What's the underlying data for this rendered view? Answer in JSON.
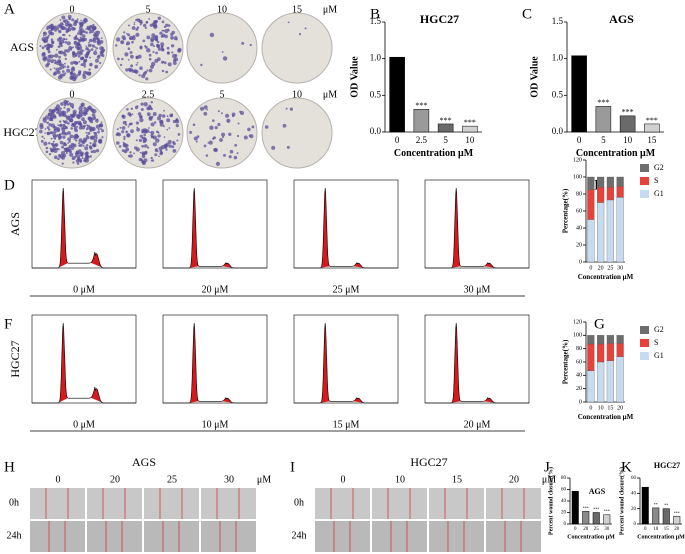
{
  "chart_data": [
    {
      "type": "bar",
      "letter": "B",
      "title": "HGC27",
      "ylabel": "OD Value",
      "xlabel": "Concentration μM",
      "categories": [
        "0",
        "2.5",
        "5",
        "10"
      ],
      "values": [
        1.02,
        0.31,
        0.11,
        0.08
      ],
      "colors": [
        "#000000",
        "#9a9a9a",
        "#6a6a6a",
        "#d0d0d0"
      ],
      "annotations": [
        null,
        "***",
        "***",
        "***"
      ],
      "ylim": [
        0,
        1.5
      ],
      "yticks": [
        {
          "value": 0,
          "label": "0.0"
        },
        {
          "value": 0.5,
          "label": "0.5"
        },
        {
          "value": 1,
          "label": "1.0"
        },
        {
          "value": 1.5,
          "label": "1.5"
        }
      ]
    },
    {
      "type": "bar",
      "letter": "C",
      "title": "AGS",
      "ylabel": "OD Value",
      "xlabel": "Concentration μM",
      "categories": [
        "0",
        "5",
        "10",
        "15"
      ],
      "values": [
        1.04,
        0.35,
        0.22,
        0.11
      ],
      "colors": [
        "#000000",
        "#9a9a9a",
        "#6a6a6a",
        "#d0d0d0"
      ],
      "annotations": [
        null,
        "***",
        "***",
        "***"
      ],
      "ylim": [
        0,
        1.5
      ],
      "yticks": [
        {
          "value": 0,
          "label": "0.0"
        },
        {
          "value": 0.5,
          "label": "0.5"
        },
        {
          "value": 1,
          "label": "1.0"
        },
        {
          "value": 1.5,
          "label": "1.5"
        }
      ]
    },
    {
      "type": "stacked_bar",
      "letter": "E",
      "ylabel": "Percentage(%)",
      "xlabel": "Concentration μM",
      "categories": [
        "0",
        "20",
        "25",
        "30"
      ],
      "series": [
        {
          "name": "G1",
          "color": "#c6dbef",
          "values": [
            50,
            70,
            73,
            76
          ]
        },
        {
          "name": "S",
          "color": "#e8413a",
          "values": [
            35,
            18,
            15,
            13
          ]
        },
        {
          "name": "G2",
          "color": "#6d6d6d",
          "values": [
            15,
            12,
            12,
            11
          ]
        }
      ],
      "ylim": [
        0,
        120
      ],
      "yticks": [
        0,
        20,
        40,
        60,
        80,
        100,
        120
      ]
    },
    {
      "type": "stacked_bar",
      "letter": "G",
      "ylabel": "Percentage(%)",
      "xlabel": "Concentration μM",
      "categories": [
        "0",
        "10",
        "15",
        "20"
      ],
      "series": [
        {
          "name": "G1",
          "color": "#c6dbef",
          "values": [
            47,
            60,
            62,
            68
          ]
        },
        {
          "name": "S",
          "color": "#e8413a",
          "values": [
            40,
            27,
            26,
            20
          ]
        },
        {
          "name": "G2",
          "color": "#6d6d6d",
          "values": [
            13,
            13,
            12,
            12
          ]
        }
      ],
      "ylim": [
        0,
        120
      ],
      "yticks": [
        0,
        20,
        40,
        60,
        80,
        100,
        120
      ]
    },
    {
      "type": "bar",
      "letter": "J",
      "title": "AGS",
      "ylabel": "Percent wound closure(%)",
      "xlabel": "Concentration μM",
      "categories": [
        "0",
        "20",
        "25",
        "30"
      ],
      "values": [
        57,
        22,
        20,
        16
      ],
      "colors": [
        "#000000",
        "#8a8a8a",
        "#6a6a6a",
        "#d0d0d0"
      ],
      "annotations": [
        null,
        "***",
        "***",
        "***"
      ],
      "ylim": [
        0,
        80
      ],
      "yticks": [
        0,
        20,
        40,
        60,
        80
      ]
    },
    {
      "type": "bar",
      "letter": "K",
      "title": "HGC27",
      "ylabel": "Percent wound closure(%)",
      "xlabel": "Concentration μM",
      "categories": [
        "0",
        "10",
        "15",
        "20"
      ],
      "values": [
        48,
        21,
        20,
        10
      ],
      "colors": [
        "#000000",
        "#8a8a8a",
        "#6a6a6a",
        "#d0d0d0"
      ],
      "annotations": [
        null,
        "**",
        "**",
        "***"
      ],
      "ylim": [
        0,
        60
      ],
      "yticks": [
        0,
        20,
        40,
        60
      ]
    }
  ],
  "colony": {
    "letter": "A",
    "unit": "μM",
    "rows": [
      {
        "label": "AGS",
        "doses": [
          "0",
          "5",
          "10",
          "15"
        ]
      },
      {
        "label": "HGC27",
        "doses": [
          "0",
          "2.5",
          "5",
          "10"
        ]
      }
    ]
  },
  "flow": [
    {
      "letter": "D",
      "cell": "AGS",
      "doses": [
        "0 μM",
        "20 μM",
        "25 μM",
        "30 μM"
      ]
    },
    {
      "letter": "F",
      "cell": "HGC27",
      "doses": [
        "0 μM",
        "10 μM",
        "15 μM",
        "20 μM"
      ]
    }
  ],
  "wound": [
    {
      "letter": "H",
      "cell": "AGS",
      "unit": "μM",
      "doses": [
        "0",
        "20",
        "25",
        "30"
      ],
      "times": [
        "0h",
        "24h"
      ]
    },
    {
      "letter": "I",
      "cell": "HGC27",
      "unit": "μM",
      "doses": [
        "0",
        "10",
        "15",
        "20"
      ],
      "times": [
        "0h",
        "24h"
      ]
    }
  ]
}
